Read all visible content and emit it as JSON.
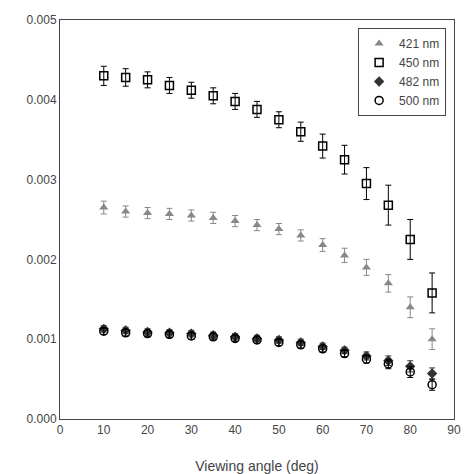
{
  "chart_data": {
    "type": "scatter",
    "xlabel": "Viewing angle (deg)",
    "x": [
      10,
      15,
      20,
      25,
      30,
      35,
      40,
      45,
      50,
      55,
      60,
      65,
      70,
      75,
      80,
      85
    ],
    "series": [
      {
        "name": "421 nm",
        "color": "#888888",
        "marker": "triangle-up",
        "values": [
          0.00265,
          0.0026,
          0.00258,
          0.00257,
          0.00255,
          0.00252,
          0.00248,
          0.00243,
          0.00238,
          0.0023,
          0.00218,
          0.00205,
          0.0019,
          0.0017,
          0.0014,
          0.001
        ],
        "errors": [
          8e-05,
          7e-05,
          7e-05,
          7e-05,
          7e-05,
          7e-05,
          7e-05,
          7e-05,
          7e-05,
          7e-05,
          8e-05,
          9e-05,
          0.0001,
          0.00011,
          0.00013,
          0.00013
        ]
      },
      {
        "name": "450 nm",
        "color": "#000000",
        "marker": "square-open",
        "values": [
          0.0043,
          0.00428,
          0.00425,
          0.00418,
          0.00412,
          0.00405,
          0.00398,
          0.00388,
          0.00375,
          0.0036,
          0.00342,
          0.00325,
          0.00295,
          0.00268,
          0.00225,
          0.00158
        ],
        "errors": [
          0.00012,
          0.00011,
          0.0001,
          0.0001,
          0.0001,
          0.0001,
          0.0001,
          0.0001,
          0.0001,
          0.00012,
          0.00015,
          0.00018,
          0.0002,
          0.00025,
          0.00025,
          0.00025
        ]
      },
      {
        "name": "482 nm",
        "color": "#333333",
        "marker": "diamond",
        "values": [
          0.00113,
          0.00111,
          0.00109,
          0.00108,
          0.00107,
          0.00105,
          0.00103,
          0.00101,
          0.00099,
          0.00096,
          0.00091,
          0.00086,
          0.00079,
          0.00073,
          0.00066,
          0.00057
        ],
        "errors": [
          4e-05,
          4e-05,
          4e-05,
          4e-05,
          4e-05,
          4e-05,
          4e-05,
          4e-05,
          4e-05,
          4e-05,
          4e-05,
          4e-05,
          5e-05,
          6e-05,
          7e-05,
          7e-05
        ]
      },
      {
        "name": "500 nm",
        "color": "#000000",
        "marker": "circle-open",
        "values": [
          0.0011,
          0.00108,
          0.00107,
          0.00106,
          0.00104,
          0.00103,
          0.00101,
          0.00099,
          0.00096,
          0.00093,
          0.00088,
          0.00082,
          0.00075,
          0.00069,
          0.00059,
          0.00043
        ],
        "errors": [
          4e-05,
          4e-05,
          4e-05,
          4e-05,
          4e-05,
          4e-05,
          4e-05,
          4e-05,
          4e-05,
          4e-05,
          4e-05,
          4e-05,
          5e-05,
          6e-05,
          7e-05,
          7e-05
        ]
      }
    ],
    "xlim": [
      0,
      90
    ],
    "xticks": [
      0,
      10,
      20,
      30,
      40,
      50,
      60,
      70,
      80,
      90
    ],
    "ylim": [
      0,
      0.005
    ],
    "yticks": [
      {
        "value": 0,
        "label": "0.000"
      },
      0.001,
      0.002,
      0.003,
      0.004,
      0.005
    ],
    "grid": false,
    "legend": "upper right"
  }
}
